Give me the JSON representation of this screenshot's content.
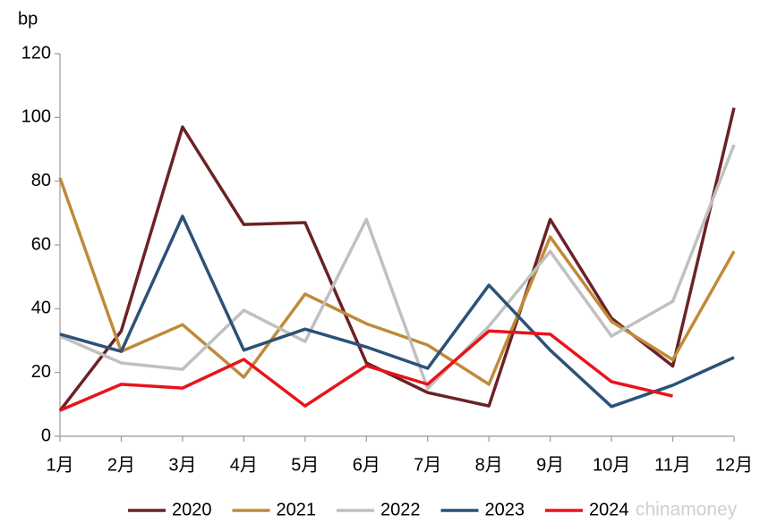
{
  "chart_data": {
    "type": "line",
    "y_label": "bp",
    "watermark": "chinamoney",
    "categories": [
      "1月",
      "2月",
      "3月",
      "4月",
      "5月",
      "6月",
      "7月",
      "8月",
      "9月",
      "10月",
      "11月",
      "12月"
    ],
    "series": [
      {
        "name": "2020",
        "color": "#6b2226",
        "values": [
          8,
          33,
          97,
          66.4,
          67,
          23,
          13.7,
          9.5,
          68,
          37,
          22,
          103
        ]
      },
      {
        "name": "2021",
        "color": "#c08a3a",
        "values": [
          81,
          26.6,
          35,
          18.5,
          44.6,
          35.3,
          28.6,
          16.3,
          62.5,
          36,
          24,
          58
        ]
      },
      {
        "name": "2022",
        "color": "#c0c0c0",
        "values": [
          31.4,
          23,
          21,
          39.5,
          29.7,
          68,
          15,
          34.5,
          58,
          31.4,
          42.3,
          91.4
        ]
      },
      {
        "name": "2023",
        "color": "#2b5278",
        "values": [
          32,
          26.6,
          69,
          27,
          33.6,
          28,
          21.3,
          47.4,
          27,
          9.3,
          16,
          24.7
        ]
      },
      {
        "name": "2024",
        "color": "#e8141a",
        "values": [
          8.1,
          16.3,
          15.1,
          24.1,
          9.5,
          22.1,
          16.3,
          33,
          32,
          17.1,
          12.6,
          null
        ]
      }
    ],
    "ylim": [
      0,
      120
    ],
    "yticks": [
      0,
      20,
      40,
      60,
      80,
      100,
      120
    ],
    "grid": false,
    "legend": "bottom"
  }
}
